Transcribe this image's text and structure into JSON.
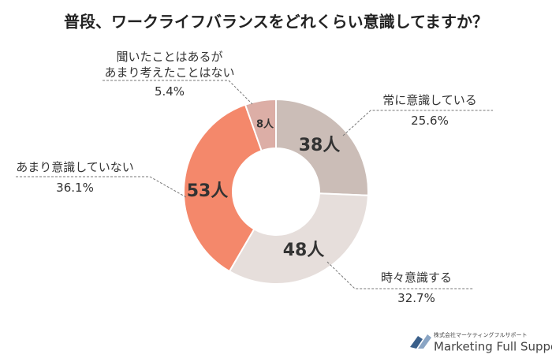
{
  "chart_data": {
    "type": "pie",
    "title": "普段、ワークライフバランスをどれくらい意識してますか？",
    "categories": [
      "常に意識している",
      "時々意識する",
      "あまり意識していない",
      "聞いたことはあるが\nあまり考えたことはない"
    ],
    "values": [
      25.6,
      32.7,
      36.1,
      5.4
    ],
    "value_labels": [
      "25.6%",
      "32.7%",
      "36.1%",
      "5.4%"
    ],
    "counts": [
      38,
      48,
      53,
      8
    ],
    "count_labels": [
      "38人",
      "48人",
      "53人",
      "8人"
    ],
    "colors": [
      "#cbbdb7",
      "#e6dedb",
      "#f4886b",
      "#dcaea6"
    ],
    "donut": true
  },
  "brand": {
    "company": "株式会社マーケティングフルサポート",
    "name": "Marketing Full Support"
  }
}
